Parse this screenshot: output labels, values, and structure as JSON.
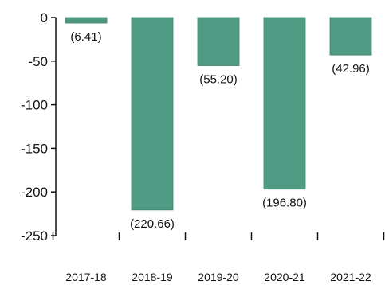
{
  "chart_data": {
    "type": "bar",
    "title": "",
    "xlabel": "",
    "ylabel": "",
    "categories": [
      "2017-18",
      "2018-19",
      "2019-20",
      "2020-21",
      "2021-22"
    ],
    "values": [
      -6.41,
      -220.66,
      -55.2,
      -196.8,
      -42.96
    ],
    "data_labels": [
      "(6.41)",
      "(220.66)",
      "(55.20)",
      "(196.80)",
      "(42.96)"
    ],
    "ylim": [
      -250,
      0
    ],
    "yticks": [
      0,
      -50,
      -100,
      -150,
      -200,
      -250
    ],
    "ytick_labels": [
      "0",
      "-50",
      "-100",
      "-150",
      "-200",
      "-250"
    ],
    "grid": false,
    "colors": {
      "bar": "#4f9a82",
      "bar_edge": "#3d7f6a",
      "axis": "#111111"
    }
  }
}
